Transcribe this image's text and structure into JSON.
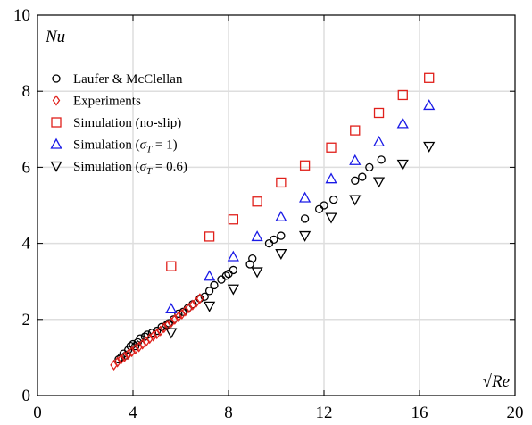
{
  "chart_data": {
    "type": "scatter",
    "title": "",
    "xlabel": "√Re",
    "ylabel": "Nu",
    "xlim": [
      0,
      20
    ],
    "ylim": [
      0,
      10
    ],
    "xticks": [
      "0",
      "4",
      "8",
      "12",
      "16",
      "20"
    ],
    "yticks": [
      "0",
      "2",
      "4",
      "6",
      "8",
      "10"
    ],
    "x_tick_values": [
      0,
      4,
      8,
      12,
      16,
      20
    ],
    "y_tick_values": [
      0,
      2,
      4,
      6,
      8,
      10
    ],
    "grid": true,
    "legend_position": "top-left",
    "series": [
      {
        "name": "Laufer & McClellan",
        "marker": "circle",
        "color": "#000000",
        "x": [
          3.4,
          3.5,
          3.6,
          3.7,
          3.8,
          3.9,
          4.0,
          4.1,
          4.2,
          4.3,
          4.5,
          4.6,
          4.8,
          5.0,
          5.2,
          5.4,
          5.5,
          5.7,
          5.9,
          6.1,
          6.3,
          6.5,
          6.8,
          7.0,
          7.2,
          7.4,
          7.7,
          7.9,
          8.0,
          8.2,
          8.9,
          9.0,
          9.7,
          9.9,
          10.2,
          11.2,
          11.8,
          12.0,
          12.4,
          13.3,
          13.6,
          13.9,
          14.4
        ],
        "y": [
          0.95,
          1.0,
          1.1,
          1.05,
          1.2,
          1.3,
          1.35,
          1.3,
          1.4,
          1.5,
          1.55,
          1.6,
          1.65,
          1.7,
          1.8,
          1.85,
          1.9,
          2.0,
          2.15,
          2.2,
          2.3,
          2.4,
          2.55,
          2.6,
          2.75,
          2.9,
          3.05,
          3.15,
          3.2,
          3.3,
          3.45,
          3.6,
          4.0,
          4.1,
          4.2,
          4.65,
          4.9,
          5.0,
          5.15,
          5.65,
          5.75,
          6.0,
          6.2
        ]
      },
      {
        "name": "Experiments",
        "marker": "diamond",
        "color": "#e0201b",
        "x": [
          3.2,
          3.35,
          3.5,
          3.65,
          3.8,
          3.95,
          4.1,
          4.25,
          4.4,
          4.55,
          4.7,
          4.85,
          5.0,
          5.15,
          5.3,
          5.45,
          5.6,
          5.75,
          5.9,
          6.05,
          6.2,
          6.35,
          6.5,
          6.65,
          6.8
        ],
        "y": [
          0.8,
          0.88,
          0.95,
          1.02,
          1.08,
          1.15,
          1.22,
          1.28,
          1.35,
          1.42,
          1.5,
          1.56,
          1.62,
          1.7,
          1.78,
          1.85,
          1.92,
          2.0,
          2.07,
          2.14,
          2.22,
          2.3,
          2.38,
          2.45,
          2.55
        ]
      },
      {
        "name": "Simulation (no-slip)",
        "marker": "square",
        "color": "#e0201b",
        "x": [
          5.6,
          7.2,
          8.2,
          9.2,
          10.2,
          11.2,
          12.3,
          13.3,
          14.3,
          15.3,
          16.4
        ],
        "y": [
          3.4,
          4.18,
          4.63,
          5.1,
          5.6,
          6.05,
          6.52,
          6.97,
          7.43,
          7.9,
          8.35
        ]
      },
      {
        "name": "Simulation (σT = 1)",
        "marker": "triangle-up",
        "color": "#1a1ae6",
        "x": [
          5.6,
          7.2,
          8.2,
          9.2,
          10.2,
          11.2,
          12.3,
          13.3,
          14.3,
          15.3,
          16.4
        ],
        "y": [
          2.28,
          3.14,
          3.65,
          4.18,
          4.7,
          5.2,
          5.7,
          6.18,
          6.67,
          7.15,
          7.63
        ]
      },
      {
        "name": "Simulation (σT = 0.6)",
        "marker": "triangle-down",
        "color": "#000000",
        "x": [
          5.6,
          7.2,
          8.2,
          9.2,
          10.2,
          11.2,
          12.3,
          13.3,
          14.3,
          15.3,
          16.4
        ],
        "y": [
          1.65,
          2.35,
          2.8,
          3.25,
          3.73,
          4.2,
          4.68,
          5.15,
          5.62,
          6.08,
          6.55
        ]
      }
    ]
  }
}
